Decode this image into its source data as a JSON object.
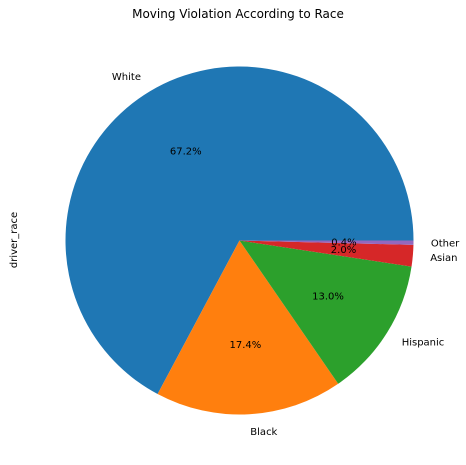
{
  "chart_data": {
    "type": "pie",
    "title": "Moving Violation According to Race",
    "ylabel": "driver_race",
    "categories": [
      "White",
      "Black",
      "Hispanic",
      "Asian",
      "Other"
    ],
    "values": [
      67.2,
      17.4,
      13.0,
      2.0,
      0.4
    ],
    "percent_labels": [
      "67.2%",
      "17.4%",
      "13.0%",
      "2.0%",
      "0.4%"
    ],
    "colors": [
      "#1f77b4",
      "#ff7f0e",
      "#2ca02c",
      "#d62728",
      "#9467bd"
    ],
    "start_angle_deg": 0,
    "direction": "counterclockwise",
    "legend": "none"
  }
}
